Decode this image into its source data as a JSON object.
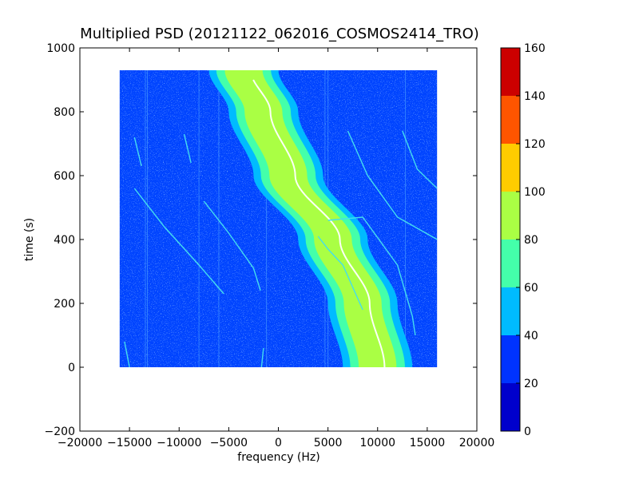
{
  "chart_data": {
    "type": "heatmap",
    "title": "Multiplied PSD (20121122_062016_COSMOS2414_TRO)",
    "xlabel": "frequency (Hz)",
    "ylabel": "time (s)",
    "xlim": [
      -20000,
      20000
    ],
    "ylim": [
      -200,
      1000
    ],
    "x_ticks": [
      -20000,
      -15000,
      -10000,
      -5000,
      0,
      5000,
      10000,
      15000,
      20000
    ],
    "y_ticks": [
      -200,
      0,
      200,
      400,
      600,
      800,
      1000
    ],
    "data_extent": {
      "x": [
        -16000,
        16000
      ],
      "y": [
        0,
        930
      ]
    },
    "grid": false,
    "colorbar": {
      "levels": [
        0,
        20,
        40,
        60,
        80,
        100,
        120,
        140,
        160
      ],
      "colors": [
        "#0000cc",
        "#0033ff",
        "#00bbff",
        "#44ffaa",
        "#aaff44",
        "#ffcc00",
        "#ff5500",
        "#cc0000"
      ]
    },
    "background_level_color": "#0044ff",
    "main_band": {
      "description_points": [
        {
          "t": 930,
          "f_center": -3500
        },
        {
          "t": 800,
          "f_center": -1500
        },
        {
          "t": 600,
          "f_center": 1000
        },
        {
          "t": 400,
          "f_center": 5500
        },
        {
          "t": 200,
          "f_center": 8500
        },
        {
          "t": 0,
          "f_center": 10000
        }
      ],
      "widths_hz": {
        "level_40": 7000,
        "level_60": 5500,
        "level_80": 3800
      },
      "colors": {
        "level_40": "#00bbff",
        "level_60": "#44ffaa",
        "level_80": "#aaff44"
      }
    },
    "narrow_traces": [
      {
        "points": [
          [
            -14500,
            720
          ],
          [
            -13800,
            630
          ]
        ]
      },
      {
        "points": [
          [
            -9500,
            730
          ],
          [
            -8800,
            640
          ]
        ]
      },
      {
        "points": [
          [
            -14500,
            560
          ],
          [
            -11500,
            440
          ],
          [
            -8000,
            320
          ],
          [
            -5500,
            230
          ]
        ]
      },
      {
        "points": [
          [
            -7500,
            520
          ],
          [
            -5000,
            420
          ],
          [
            -2500,
            310
          ],
          [
            -1800,
            240
          ]
        ]
      },
      {
        "points": [
          [
            -1500,
            60
          ],
          [
            -1700,
            0
          ]
        ]
      },
      {
        "points": [
          [
            -15500,
            80
          ],
          [
            -15000,
            0
          ]
        ]
      },
      {
        "points": [
          [
            7000,
            740
          ],
          [
            9000,
            600
          ],
          [
            12000,
            470
          ],
          [
            16000,
            400
          ]
        ]
      },
      {
        "points": [
          [
            12500,
            740
          ],
          [
            14000,
            620
          ],
          [
            16000,
            560
          ]
        ]
      },
      {
        "points": [
          [
            4000,
            410
          ],
          [
            5000,
            370
          ],
          [
            6500,
            320
          ],
          [
            7500,
            250
          ],
          [
            8500,
            180
          ]
        ]
      },
      {
        "points": [
          [
            5000,
            460
          ],
          [
            8500,
            470
          ],
          [
            12000,
            320
          ],
          [
            13500,
            160
          ],
          [
            13800,
            100
          ]
        ]
      }
    ],
    "vertical_lines_hz": [
      -13400,
      -13200,
      -8000,
      -6000,
      -1200,
      4700,
      5000,
      12800
    ]
  }
}
